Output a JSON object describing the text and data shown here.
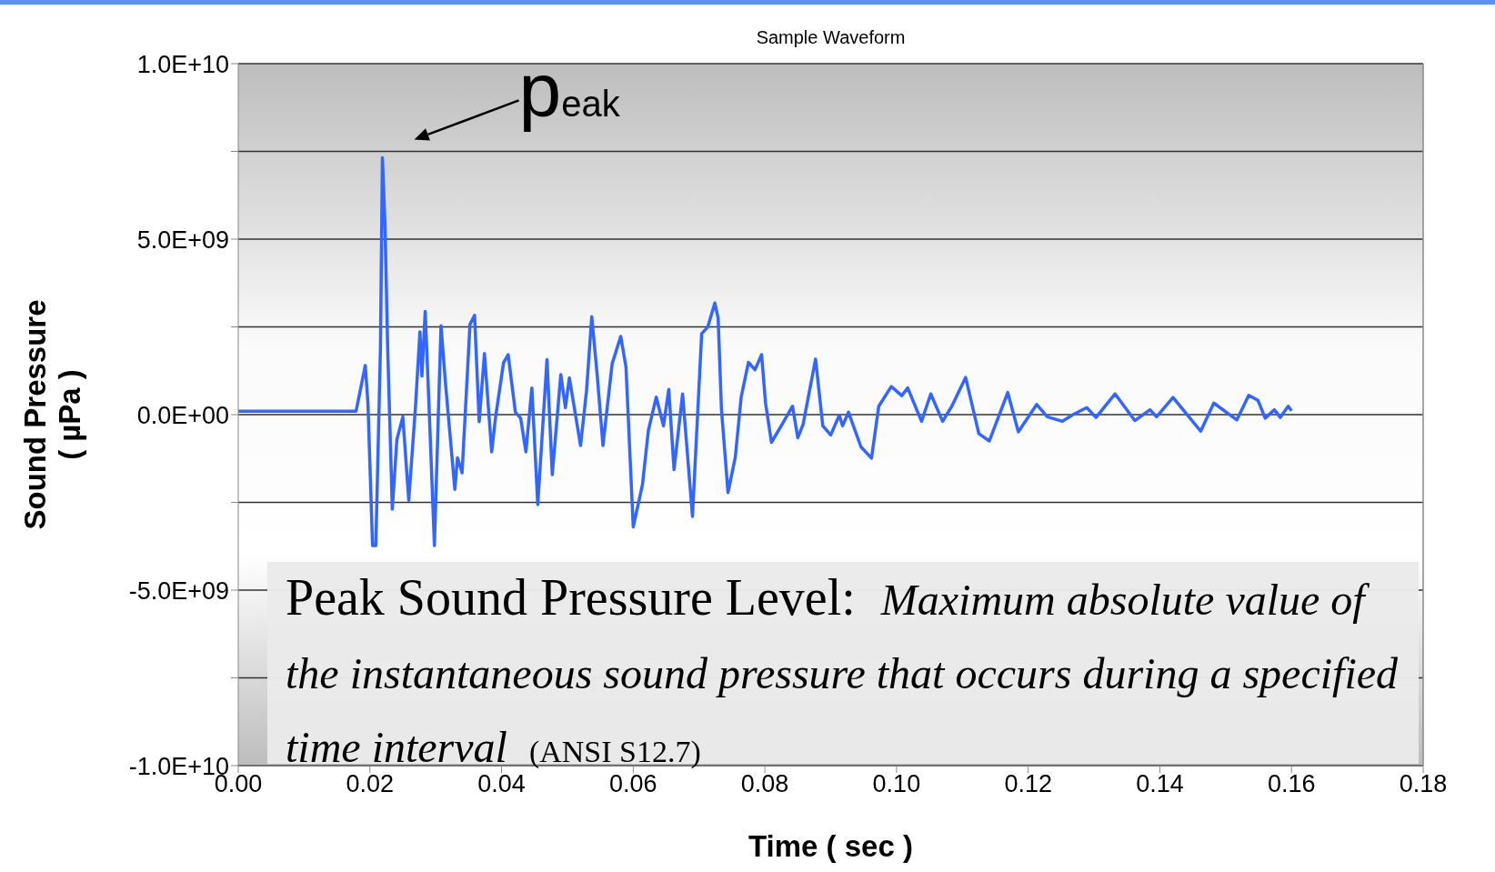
{
  "chart_data": {
    "type": "line",
    "title": "Sample Waveform",
    "xlabel": "Time ( sec )",
    "ylabel": "Sound Pressure\n( µPa )",
    "x": [
      0,
      0.0179,
      0.0193,
      0.0197,
      0.0204,
      0.0209,
      0.0216,
      0.0219,
      0.0223,
      0.0227,
      0.0234,
      0.0241,
      0.025,
      0.0259,
      0.0269,
      0.0276,
      0.0279,
      0.0284,
      0.029,
      0.0298,
      0.0308,
      0.0315,
      0.0329,
      0.0333,
      0.034,
      0.0352,
      0.0359,
      0.0366,
      0.0374,
      0.0385,
      0.0391,
      0.0403,
      0.041,
      0.0421,
      0.0429,
      0.0437,
      0.0446,
      0.0455,
      0.0469,
      0.0477,
      0.049,
      0.0497,
      0.0503,
      0.052,
      0.0529,
      0.0537,
      0.0545,
      0.0554,
      0.0568,
      0.0581,
      0.0589,
      0.06,
      0.0614,
      0.0623,
      0.0635,
      0.0646,
      0.0654,
      0.0662,
      0.0675,
      0.069,
      0.0704,
      0.0713,
      0.0724,
      0.0729,
      0.0734,
      0.0744,
      0.0755,
      0.0764,
      0.0775,
      0.0785,
      0.0795,
      0.0801,
      0.081,
      0.0826,
      0.0842,
      0.085,
      0.0858,
      0.0877,
      0.0888,
      0.09,
      0.0913,
      0.0918,
      0.0927,
      0.0946,
      0.0962,
      0.0973,
      0.0992,
      0.1008,
      0.1017,
      0.1038,
      0.1052,
      0.107,
      0.1084,
      0.1105,
      0.1125,
      0.1141,
      0.1169,
      0.1185,
      0.1213,
      0.1229,
      0.1252,
      0.1268,
      0.1289,
      0.1303,
      0.1332,
      0.1362,
      0.1385,
      0.1395,
      0.142,
      0.1462,
      0.1482,
      0.1517,
      0.1535,
      0.1549,
      0.156,
      0.1574,
      0.1583,
      0.1595,
      0.16
    ],
    "series": [
      {
        "color": "#3366ff",
        "values": [
          100000000.0,
          100000000.0,
          1400000000.0,
          330000000.0,
          -3730000000.0,
          -3730000000.0,
          1890000000.0,
          7320000000.0,
          5340000000.0,
          1890000000.0,
          -2690000000.0,
          -710000000.0,
          -60000000.0,
          -2440000000.0,
          160000000.0,
          2360000000.0,
          1100000000.0,
          2940000000.0,
          160000000.0,
          -3730000000.0,
          2530000000.0,
          850000000.0,
          -2130000000.0,
          -1230000000.0,
          -1660000000.0,
          2570000000.0,
          2830000000.0,
          -200000000.0,
          1740000000.0,
          -1060000000.0,
          -60000000.0,
          1480000000.0,
          1710000000.0,
          70000000.0,
          -100000000.0,
          -1060000000.0,
          760000000.0,
          -2560000000.0,
          1570000000.0,
          -1710000000.0,
          1140000000.0,
          200000000.0,
          1050000000.0,
          -880000000.0,
          670000000.0,
          2790000000.0,
          1190000000.0,
          -880000000.0,
          1450000000.0,
          2230000000.0,
          1360000000.0,
          -3200000000.0,
          -2000000000.0,
          -450000000.0,
          500000000.0,
          -320000000.0,
          720000000.0,
          -1570000000.0,
          590000000.0,
          -2900000000.0,
          2310000000.0,
          2490000000.0,
          3180000000.0,
          2750000000.0,
          160000000.0,
          -2220000000.0,
          -1220000000.0,
          500000000.0,
          1490000000.0,
          1280000000.0,
          1710000000.0,
          330000000.0,
          -790000000.0,
          -280000000.0,
          240000000.0,
          -660000000.0,
          -280000000.0,
          1580000000.0,
          -320000000.0,
          -580000000.0,
          -20000000.0,
          -320000000.0,
          70000000.0,
          -920000000.0,
          -1240000000.0,
          240000000.0,
          800000000.0,
          540000000.0,
          760000000.0,
          -190000000.0,
          590000000.0,
          -190000000.0,
          240000000.0,
          1060000000.0,
          -540000000.0,
          -750000000.0,
          630000000.0,
          -490000000.0,
          290000000.0,
          -60000000.0,
          -190000000.0,
          0,
          200000000.0,
          -80000000.0,
          590000000.0,
          -170000000.0,
          140000000.0,
          -60000000.0,
          490000000.0,
          -470000000.0,
          330000000.0,
          -150000000.0,
          550000000.0,
          410000000.0,
          -100000000.0,
          140000000.0,
          -80000000.0,
          240000000.0,
          110000000.0
        ]
      }
    ],
    "xlim": [
      0,
      0.18
    ],
    "xticks": [
      {
        "value": 0,
        "label": "0.00"
      },
      {
        "value": 0.02,
        "label": "0.02"
      },
      {
        "value": 0.04,
        "label": "0.04"
      },
      {
        "value": 0.06,
        "label": "0.06"
      },
      {
        "value": 0.08,
        "label": "0.08"
      },
      {
        "value": 0.1,
        "label": "0.10"
      },
      {
        "value": 0.12,
        "label": "0.12"
      },
      {
        "value": 0.14,
        "label": "0.14"
      },
      {
        "value": 0.16,
        "label": "0.16"
      },
      {
        "value": 0.18,
        "label": "0.18"
      }
    ],
    "ylim": [
      -10000000000.0,
      10000000000.0
    ],
    "yticks": [
      {
        "value": -10000000000.0,
        "label": "-1.0E+10"
      },
      {
        "value": -7500000000.0,
        "label": null
      },
      {
        "value": -5000000000.0,
        "label": "-5.0E+09"
      },
      {
        "value": -2500000000.0,
        "label": null
      },
      {
        "value": 0,
        "label": "0.0E+00"
      },
      {
        "value": 2500000000.0,
        "label": null
      },
      {
        "value": 5000000000.0,
        "label": "5.0E+09"
      },
      {
        "value": 7500000000.0,
        "label": null
      },
      {
        "value": 10000000000.0,
        "label": "1.0E+10"
      }
    ],
    "grid": "y",
    "legend": false,
    "annotations": [
      {
        "text": "peak",
        "x": 0.0219,
        "y": 7320000000.0
      },
      "Peak Sound Pressure Level:",
      "Maximum absolute value of the instantaneous sound pressure that occurs during a specified time interval",
      "(ANSI S12.7)"
    ]
  }
}
